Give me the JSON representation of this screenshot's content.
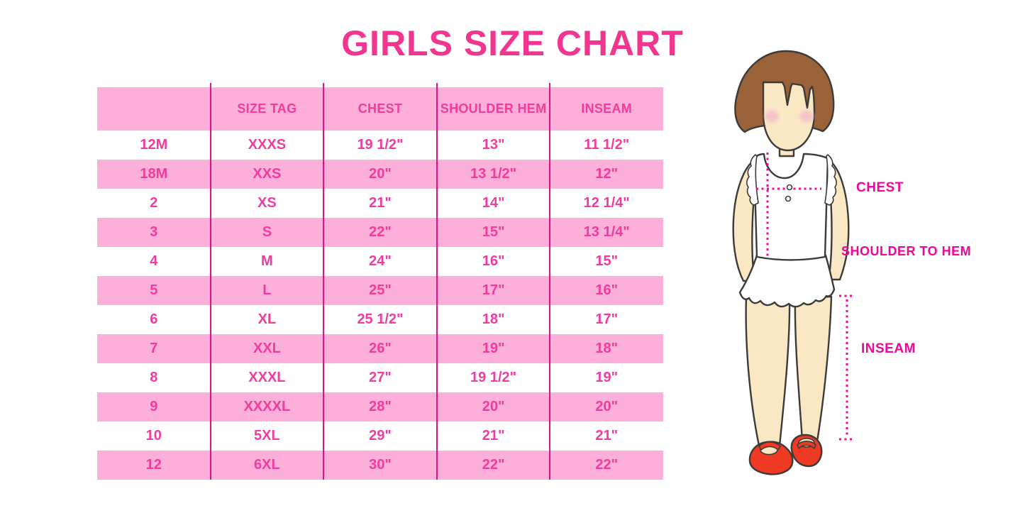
{
  "title": "GIRLS SIZE CHART",
  "chart_data": {
    "type": "table",
    "title": "GIRLS SIZE CHART",
    "columns": [
      "",
      "SIZE TAG",
      "CHEST",
      "SHOULDER HEM",
      "INSEAM"
    ],
    "rows": [
      [
        "12M",
        "XXXS",
        "19 1/2\"",
        "13\"",
        "11 1/2\""
      ],
      [
        "18M",
        "XXS",
        "20\"",
        "13 1/2\"",
        "12\""
      ],
      [
        "2",
        "XS",
        "21\"",
        "14\"",
        "12 1/4\""
      ],
      [
        "3",
        "S",
        "22\"",
        "15\"",
        "13 1/4\""
      ],
      [
        "4",
        "M",
        "24\"",
        "16\"",
        "15\""
      ],
      [
        "5",
        "L",
        "25\"",
        "17\"",
        "16\""
      ],
      [
        "6",
        "XL",
        "25 1/2\"",
        "18\"",
        "17\""
      ],
      [
        "7",
        "XXL",
        "26\"",
        "19\"",
        "18\""
      ],
      [
        "8",
        "XXXL",
        "27\"",
        "19 1/2\"",
        "19\""
      ],
      [
        "9",
        "XXXXL",
        "28\"",
        "20\"",
        "20\""
      ],
      [
        "10",
        "5XL",
        "29\"",
        "21\"",
        "21\""
      ],
      [
        "12",
        "6XL",
        "30\"",
        "22\"",
        "22\""
      ]
    ],
    "layout": "pink header row; data rows alternate white/pink starting white; magenta column dividers; no horizontal borders"
  },
  "figure": {
    "description": "cartoon girl with bob haircut, white ruffled top and red shoes, with dotted measurement guides",
    "labels": {
      "chest": "CHEST",
      "shoulder_to_hem": "SHOULDER TO HEM",
      "inseam": "INSEAM"
    }
  },
  "colors": {
    "title_pink": "#F0368F",
    "table_text_pink": "#F03C9C",
    "row_pink": "#FBAFD9",
    "divider_magenta": "#E2118A",
    "label_magenta": "#F1059B",
    "dotted_magenta": "#F1089B",
    "hair_brown": "#9A6238",
    "skin": "#FAE8C4",
    "outline": "#3E3A39",
    "shoe_red": "#EE3A22",
    "blush": "#F4BCCA"
  }
}
